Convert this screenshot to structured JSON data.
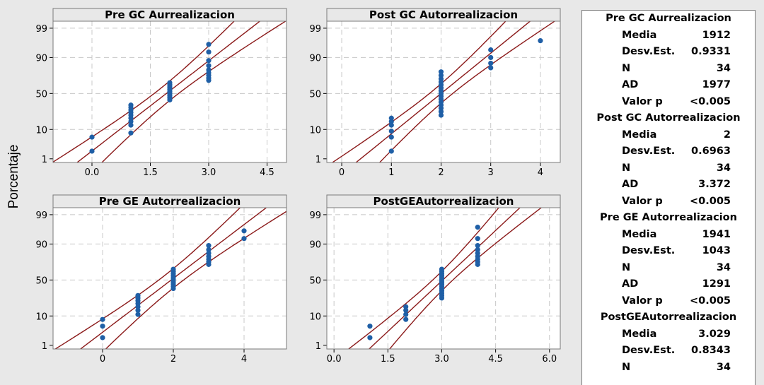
{
  "y_axis_label": "Porcentaje",
  "colors": {
    "line": "#8b1a1a",
    "point": "#1f5fa6",
    "grid": "#c8c8c8",
    "header_bg": "#e8e8e8",
    "figure_bg": "#e8e8e8"
  },
  "chart_data": [
    {
      "type": "scatter",
      "title": "Pre GC Aurrealizacion",
      "y_scale": "normal probability",
      "y_ticks": [
        1,
        10,
        50,
        90,
        99
      ],
      "x_ticks": [
        "0.0",
        "1.5",
        "3.0",
        "4.5"
      ],
      "xlim": [
        -1.0,
        5.0
      ],
      "fit": {
        "mean": 1.912,
        "sd": 0.9331,
        "n": 34
      },
      "points": [
        {
          "x": 0,
          "y": [
            2,
            6
          ]
        },
        {
          "x": 1,
          "y": [
            8,
            13,
            16,
            19,
            22,
            25,
            28,
            31,
            34
          ]
        },
        {
          "x": 2,
          "y": [
            41,
            44,
            47,
            50,
            53,
            56,
            59,
            62,
            65
          ]
        },
        {
          "x": 3,
          "y": [
            68,
            71,
            74,
            77,
            80,
            84,
            88,
            93,
            96
          ]
        }
      ]
    },
    {
      "type": "scatter",
      "title": "Post GC Autorrealizacion",
      "y_scale": "normal probability",
      "y_ticks": [
        1,
        10,
        50,
        90,
        99
      ],
      "x_ticks": [
        "0",
        "1",
        "2",
        "3",
        "4"
      ],
      "xlim": [
        -0.3,
        4.4
      ],
      "fit": {
        "mean": 2,
        "sd": 0.6963,
        "n": 34
      },
      "points": [
        {
          "x": 1,
          "y": [
            2,
            6,
            9,
            13,
            16,
            19
          ]
        },
        {
          "x": 2,
          "y": [
            22,
            26,
            30,
            34,
            38,
            42,
            46,
            50,
            54,
            58,
            62,
            66,
            70,
            74,
            78
          ]
        },
        {
          "x": 3,
          "y": [
            82,
            86,
            90,
            94
          ]
        },
        {
          "x": 4,
          "y": [
            97
          ]
        }
      ]
    },
    {
      "type": "scatter",
      "title": "Pre GE Autorrealizacion",
      "y_scale": "normal probability",
      "y_ticks": [
        1,
        10,
        50,
        90,
        99
      ],
      "x_ticks": [
        "0",
        "2",
        "4"
      ],
      "xlim": [
        -1.4,
        5.2
      ],
      "fit": {
        "mean": 1.941,
        "sd": 1.043,
        "n": 34
      },
      "points": [
        {
          "x": 0,
          "y": [
            2,
            5,
            8
          ]
        },
        {
          "x": 1,
          "y": [
            11,
            14,
            17,
            20,
            23,
            26,
            29
          ]
        },
        {
          "x": 2,
          "y": [
            38,
            41,
            44,
            47,
            50,
            53,
            56,
            59,
            62,
            65
          ]
        },
        {
          "x": 3,
          "y": [
            71,
            74,
            77,
            80,
            83,
            86,
            89
          ]
        },
        {
          "x": 4,
          "y": [
            93,
            96
          ]
        }
      ]
    },
    {
      "type": "scatter",
      "title": "PostGEAutorrealizacion",
      "y_scale": "normal probability",
      "y_ticks": [
        1,
        10,
        50,
        90,
        99
      ],
      "x_ticks": [
        "0.0",
        "1.5",
        "3.0",
        "4.5",
        "6.0"
      ],
      "xlim": [
        -0.2,
        6.3
      ],
      "fit": {
        "mean": 3.029,
        "sd": 0.8343,
        "n": 34
      },
      "points": [
        {
          "x": 1,
          "y": [
            2,
            5
          ]
        },
        {
          "x": 2,
          "y": [
            8,
            11,
            14,
            17
          ]
        },
        {
          "x": 3,
          "y": [
            26,
            29,
            32,
            35,
            38,
            41,
            44,
            47,
            50,
            53,
            56,
            59,
            62,
            65
          ]
        },
        {
          "x": 4,
          "y": [
            71,
            74,
            77,
            80,
            83,
            86,
            89,
            93,
            97
          ]
        }
      ]
    }
  ],
  "stats": [
    {
      "title": "Pre GC Aurrealizacion",
      "rows": [
        {
          "label": "Media",
          "value": "1912"
        },
        {
          "label": "Desv.Est.",
          "value": "0.9331"
        },
        {
          "label": "N",
          "value": "34"
        },
        {
          "label": "AD",
          "value": "1977"
        },
        {
          "label": "Valor p",
          "value": "<0.005"
        }
      ]
    },
    {
      "title": "Post GC Autorrealizacion",
      "rows": [
        {
          "label": "Media",
          "value": "2"
        },
        {
          "label": "Desv.Est.",
          "value": "0.6963"
        },
        {
          "label": "N",
          "value": "34"
        },
        {
          "label": "AD",
          "value": "3.372"
        },
        {
          "label": "Valor p",
          "value": "<0.005"
        }
      ]
    },
    {
      "title": "Pre GE Autorrealizacion",
      "rows": [
        {
          "label": "Media",
          "value": "1941"
        },
        {
          "label": "Desv.Est.",
          "value": "1043"
        },
        {
          "label": "N",
          "value": "34"
        },
        {
          "label": "AD",
          "value": "1291"
        },
        {
          "label": "Valor p",
          "value": "<0.005"
        }
      ]
    },
    {
      "title": "PostGEAutorrealizacion",
      "rows": [
        {
          "label": "Media",
          "value": "3.029"
        },
        {
          "label": "Desv.Est.",
          "value": "0.8343"
        },
        {
          "label": "N",
          "value": "34"
        }
      ]
    }
  ]
}
